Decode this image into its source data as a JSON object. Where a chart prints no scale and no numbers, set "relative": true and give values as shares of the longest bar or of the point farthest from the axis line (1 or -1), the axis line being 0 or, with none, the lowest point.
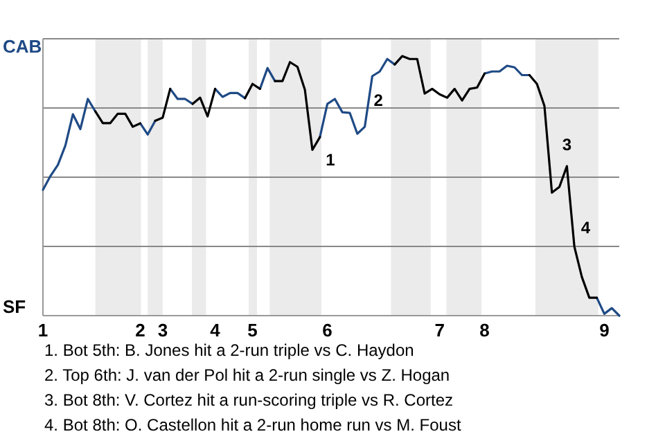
{
  "chart_data": {
    "type": "line",
    "relative": true,
    "categories": [
      "1",
      null,
      null,
      null,
      null,
      null,
      null,
      null,
      null,
      null,
      null,
      null,
      null,
      "2",
      null,
      null,
      "3",
      null,
      null,
      null,
      null,
      null,
      null,
      "4",
      null,
      null,
      null,
      null,
      "5",
      null,
      null,
      null,
      null,
      null,
      null,
      null,
      null,
      null,
      "6",
      null,
      null,
      null,
      null,
      null,
      null,
      null,
      null,
      null,
      null,
      null,
      null,
      null,
      null,
      "7",
      null,
      null,
      null,
      null,
      null,
      "8",
      null,
      null,
      null,
      null,
      null,
      null,
      null,
      null,
      null,
      null,
      null,
      null,
      null,
      null,
      null,
      "9",
      null,
      null
    ],
    "series": [
      {
        "color": "#1f4a85",
        "values": [
          0.485,
          0.538,
          0.581,
          0.656,
          0.776,
          0.719,
          0.835,
          0.787,
          null,
          null,
          null,
          null,
          null,
          0.741,
          0.698,
          0.751,
          null,
          0.874,
          0.835,
          0.835,
          0.816,
          null,
          null,
          0.874,
          0.843,
          0.858,
          0.858,
          0.838,
          null,
          0.874,
          0.954,
          0.904,
          null,
          null,
          null,
          null,
          null,
          0.688,
          0.816,
          0.835,
          0.784,
          0.781,
          0.701,
          0.728,
          0.923,
          0.941,
          0.989,
          0.968,
          null,
          null,
          null,
          null,
          null,
          null,
          null,
          null,
          null,
          null,
          null,
          0.933,
          0.941,
          0.941,
          0.963,
          0.957,
          0.927,
          0.927,
          null,
          null,
          null,
          null,
          null,
          null,
          null,
          null,
          0.069,
          0.007,
          0.029,
          0
        ]
      },
      {
        "color": "#000000",
        "values": [
          null,
          null,
          null,
          null,
          null,
          null,
          null,
          0.787,
          0.742,
          0.742,
          0.778,
          0.778,
          0.728,
          0.741,
          null,
          0.751,
          0.763,
          0.874,
          null,
          null,
          0.816,
          0.84,
          0.768,
          0.874,
          null,
          null,
          null,
          0.838,
          0.893,
          0.874,
          null,
          0.904,
          0.904,
          0.977,
          0.959,
          0.87,
          0.639,
          0.688,
          null,
          null,
          null,
          null,
          null,
          null,
          null,
          null,
          null,
          0.968,
          1,
          0.989,
          0.989,
          0.856,
          0.874,
          0.853,
          0.84,
          0.874,
          0.829,
          0.874,
          0.879,
          0.933,
          null,
          null,
          null,
          null,
          null,
          0.927,
          0.893,
          0.808,
          0.474,
          0.496,
          0.576,
          0.266,
          0.149,
          0.069,
          0.069,
          null,
          null,
          null
        ]
      }
    ],
    "grid": "y",
    "marker": "none",
    "line_style": "solid",
    "annotations": [
      "CAB",
      "SF",
      "1",
      "2",
      "3",
      "4",
      "1. Bot 5th: B. Jones hit a 2-run triple vs C. Haydon",
      "2. Top 6th: J. van der Pol hit a 2-run single vs Z. Hogan",
      "3. Bot 8th: V. Cortez hit a run-scoring triple vs R. Cortez",
      "4. Bot 8th: O. Castellon hit a 2-run home run vs M. Foust"
    ]
  }
}
